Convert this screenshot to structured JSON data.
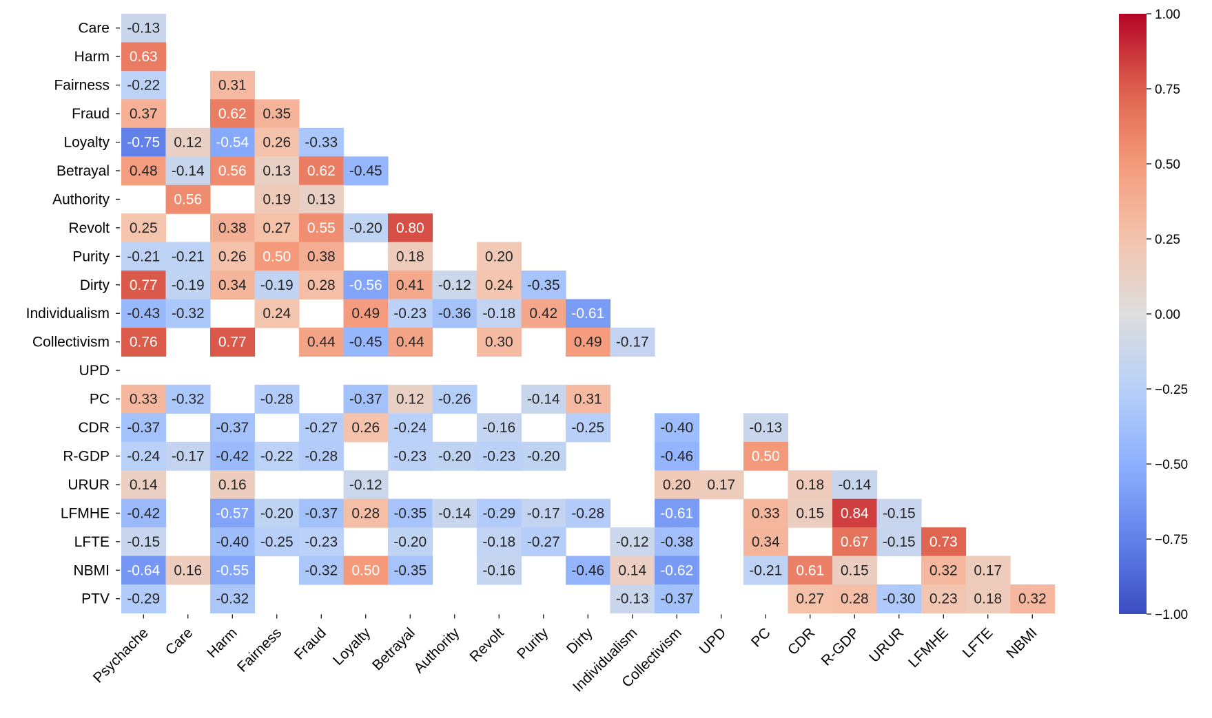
{
  "chart_data": {
    "type": "heatmap",
    "title": "",
    "xlabel": "",
    "ylabel": "",
    "colormap": "coolwarm",
    "vmin": -1.0,
    "vmax": 1.0,
    "masked": "upper-triangle; only |r| >= 0.12 shown",
    "rows": [
      "Care",
      "Harm",
      "Fairness",
      "Fraud",
      "Loyalty",
      "Betrayal",
      "Authority",
      "Revolt",
      "Purity",
      "Dirty",
      "Individualism",
      "Collectivism",
      "UPD",
      "PC",
      "CDR",
      "R-GDP",
      "URUR",
      "LFMHE",
      "LFTE",
      "NBMI",
      "PTV"
    ],
    "columns": [
      "Psychache",
      "Care",
      "Harm",
      "Fairness",
      "Fraud",
      "Loyalty",
      "Betrayal",
      "Authority",
      "Revolt",
      "Purity",
      "Dirty",
      "Individualism",
      "Collectivism",
      "UPD",
      "PC",
      "CDR",
      "R-GDP",
      "URUR",
      "LFMHE",
      "LFTE",
      "NBMI"
    ],
    "matrix": [
      [
        -0.13,
        null,
        null,
        null,
        null,
        null,
        null,
        null,
        null,
        null,
        null,
        null,
        null,
        null,
        null,
        null,
        null,
        null,
        null,
        null,
        null
      ],
      [
        0.63,
        null,
        null,
        null,
        null,
        null,
        null,
        null,
        null,
        null,
        null,
        null,
        null,
        null,
        null,
        null,
        null,
        null,
        null,
        null,
        null
      ],
      [
        -0.22,
        null,
        0.31,
        null,
        null,
        null,
        null,
        null,
        null,
        null,
        null,
        null,
        null,
        null,
        null,
        null,
        null,
        null,
        null,
        null,
        null
      ],
      [
        0.37,
        null,
        0.62,
        0.35,
        null,
        null,
        null,
        null,
        null,
        null,
        null,
        null,
        null,
        null,
        null,
        null,
        null,
        null,
        null,
        null,
        null
      ],
      [
        -0.75,
        0.12,
        -0.54,
        0.26,
        -0.33,
        null,
        null,
        null,
        null,
        null,
        null,
        null,
        null,
        null,
        null,
        null,
        null,
        null,
        null,
        null,
        null
      ],
      [
        0.48,
        -0.14,
        0.56,
        0.13,
        0.62,
        -0.45,
        null,
        null,
        null,
        null,
        null,
        null,
        null,
        null,
        null,
        null,
        null,
        null,
        null,
        null,
        null
      ],
      [
        null,
        0.56,
        null,
        0.19,
        0.13,
        null,
        null,
        null,
        null,
        null,
        null,
        null,
        null,
        null,
        null,
        null,
        null,
        null,
        null,
        null,
        null
      ],
      [
        0.25,
        null,
        0.38,
        0.27,
        0.55,
        -0.2,
        0.8,
        null,
        null,
        null,
        null,
        null,
        null,
        null,
        null,
        null,
        null,
        null,
        null,
        null,
        null
      ],
      [
        -0.21,
        -0.21,
        0.26,
        0.5,
        0.38,
        null,
        0.18,
        null,
        0.2,
        null,
        null,
        null,
        null,
        null,
        null,
        null,
        null,
        null,
        null,
        null,
        null
      ],
      [
        0.77,
        -0.19,
        0.34,
        -0.19,
        0.28,
        -0.56,
        0.41,
        -0.12,
        0.24,
        -0.35,
        null,
        null,
        null,
        null,
        null,
        null,
        null,
        null,
        null,
        null,
        null
      ],
      [
        -0.43,
        -0.32,
        null,
        0.24,
        null,
        0.49,
        -0.23,
        -0.36,
        -0.18,
        0.42,
        -0.61,
        null,
        null,
        null,
        null,
        null,
        null,
        null,
        null,
        null,
        null
      ],
      [
        0.76,
        null,
        0.77,
        null,
        0.44,
        -0.45,
        0.44,
        null,
        0.3,
        null,
        0.49,
        -0.17,
        null,
        null,
        null,
        null,
        null,
        null,
        null,
        null,
        null
      ],
      [
        null,
        null,
        null,
        null,
        null,
        null,
        null,
        null,
        null,
        null,
        null,
        null,
        null,
        null,
        null,
        null,
        null,
        null,
        null,
        null,
        null
      ],
      [
        0.33,
        -0.32,
        null,
        -0.28,
        null,
        -0.37,
        0.12,
        -0.26,
        null,
        -0.14,
        0.31,
        null,
        null,
        null,
        null,
        null,
        null,
        null,
        null,
        null,
        null
      ],
      [
        -0.37,
        null,
        -0.37,
        null,
        -0.27,
        0.26,
        -0.24,
        null,
        -0.16,
        null,
        -0.25,
        null,
        -0.4,
        null,
        -0.13,
        null,
        null,
        null,
        null,
        null,
        null
      ],
      [
        -0.24,
        -0.17,
        -0.42,
        -0.22,
        -0.28,
        null,
        -0.23,
        -0.2,
        -0.23,
        -0.2,
        null,
        null,
        -0.46,
        null,
        0.5,
        null,
        null,
        null,
        null,
        null,
        null
      ],
      [
        0.14,
        null,
        0.16,
        null,
        null,
        -0.12,
        null,
        null,
        null,
        null,
        null,
        null,
        0.2,
        0.17,
        null,
        0.18,
        -0.14,
        null,
        null,
        null,
        null
      ],
      [
        -0.42,
        null,
        -0.57,
        -0.2,
        -0.37,
        0.28,
        -0.35,
        -0.14,
        -0.29,
        -0.17,
        -0.28,
        null,
        -0.61,
        null,
        0.33,
        0.15,
        0.84,
        -0.15,
        null,
        null,
        null
      ],
      [
        -0.15,
        null,
        -0.4,
        -0.25,
        -0.23,
        null,
        -0.2,
        null,
        -0.18,
        -0.27,
        null,
        -0.12,
        -0.38,
        null,
        0.34,
        null,
        0.67,
        -0.15,
        0.73,
        null,
        null
      ],
      [
        -0.64,
        0.16,
        -0.55,
        null,
        -0.32,
        0.5,
        -0.35,
        null,
        -0.16,
        null,
        -0.46,
        0.14,
        -0.62,
        null,
        -0.21,
        0.61,
        0.15,
        null,
        0.32,
        0.17,
        null
      ],
      [
        -0.29,
        null,
        -0.32,
        null,
        null,
        null,
        null,
        null,
        null,
        null,
        null,
        -0.13,
        -0.37,
        null,
        null,
        0.27,
        0.28,
        -0.3,
        0.23,
        0.18,
        0.32
      ]
    ],
    "colorbar": {
      "ticks": [
        1.0,
        0.75,
        0.5,
        0.25,
        0.0,
        -0.25,
        -0.5,
        -0.75,
        -1.0
      ],
      "tick_labels": [
        "1.00",
        "0.75",
        "0.50",
        "0.25",
        "0.00",
        "−0.25",
        "−0.50",
        "−0.75",
        "−1.00"
      ]
    }
  }
}
